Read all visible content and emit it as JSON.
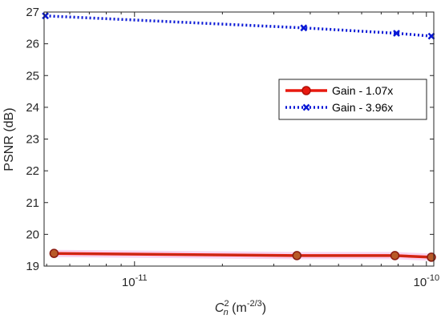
{
  "chart_data": {
    "type": "line",
    "xscale": "log",
    "xlim": [
      4.9e-12,
      1.06e-10
    ],
    "ylim": [
      19,
      27
    ],
    "yticks": [
      19,
      20,
      21,
      22,
      23,
      24,
      25,
      26,
      27
    ],
    "xticks": [
      {
        "value": 1e-11,
        "base": "10",
        "exp": "-11"
      },
      {
        "value": 1e-10,
        "base": "10",
        "exp": "-10"
      }
    ],
    "ylabel": "PSNR (dB)",
    "xlabel": {
      "main": "C",
      "sup": "2",
      "sub": "n",
      "unit_open": " (m",
      "unit_sup": "-2/3",
      "unit_close": ")"
    },
    "grid": false,
    "legend_position": "upper-right",
    "series": [
      {
        "name": "Gain - 1.07x",
        "color": "#e8190f",
        "marker": "circle",
        "style": "solid",
        "x": [
          5.3e-12,
          3.6e-11,
          7.8e-11,
          1.04e-10
        ],
        "y": [
          19.4,
          19.33,
          19.33,
          19.28
        ]
      },
      {
        "name": "Gain - 3.96x",
        "color": "#0a19d6",
        "marker": "x",
        "style": "dotted",
        "x": [
          4.95e-12,
          3.8e-11,
          7.9e-11,
          1.04e-10
        ],
        "y": [
          26.88,
          26.5,
          26.33,
          26.24
        ]
      }
    ]
  }
}
